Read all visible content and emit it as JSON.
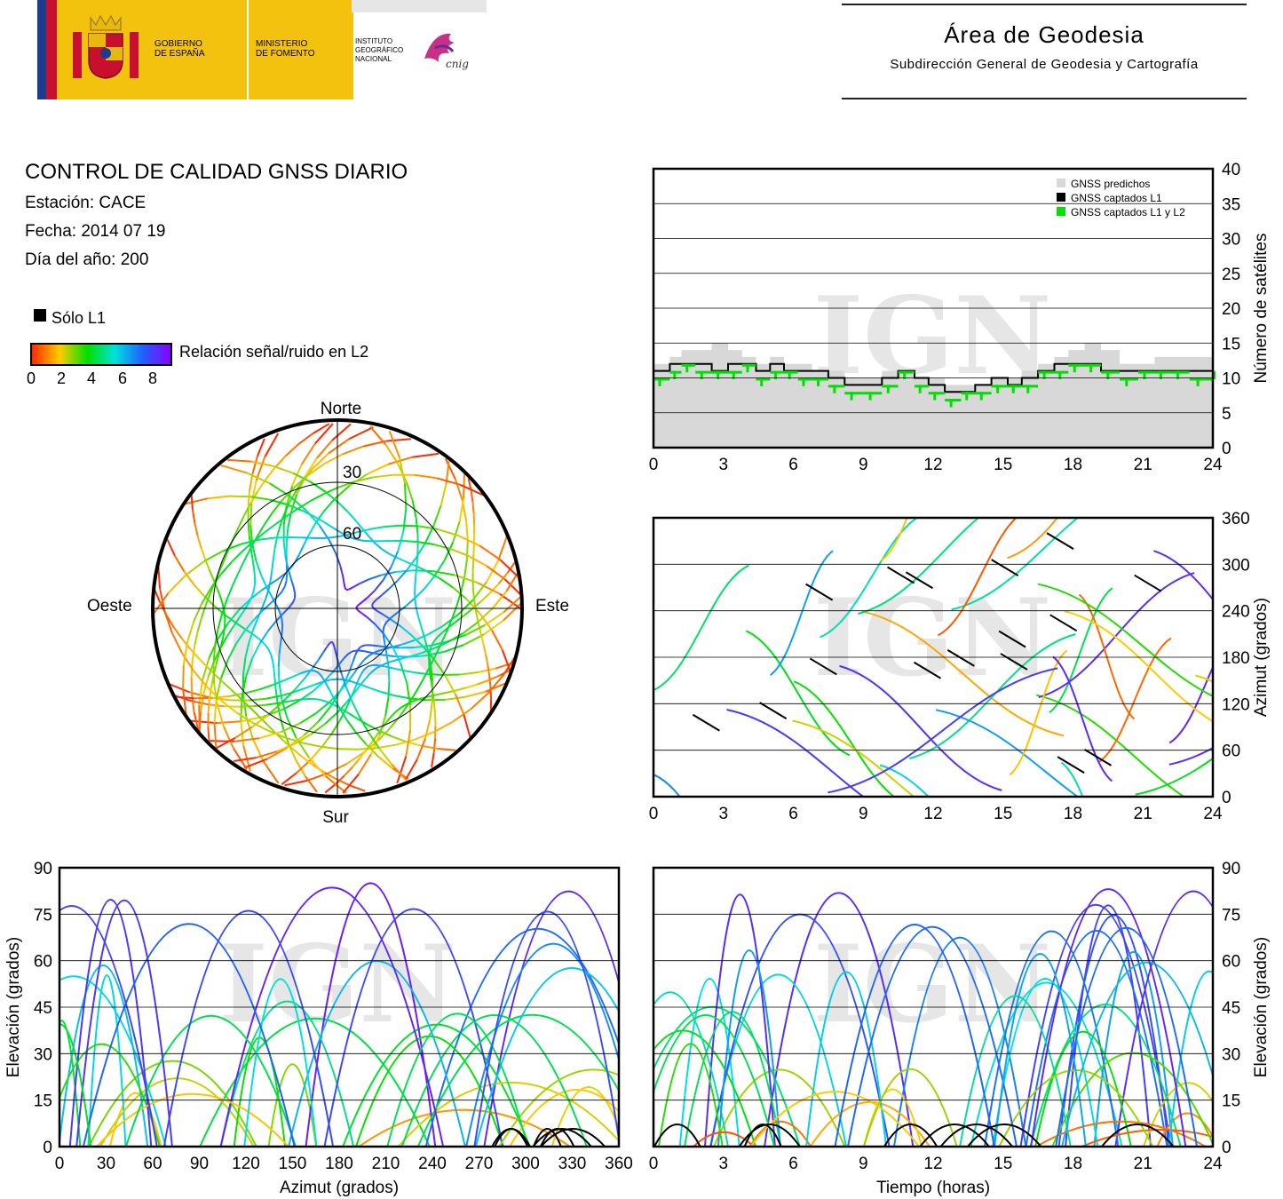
{
  "header": {
    "gov_line1": "GOBIERNO",
    "gov_line2": "DE ESPAÑA",
    "min_line1": "MINISTERIO",
    "min_line2": "DE FOMENTO",
    "inst_line1": "INSTITUTO",
    "inst_line2": "GEOGRÁFICO",
    "inst_line3": "NACIONAL",
    "cnig": "cnig",
    "area_title": "Área de Geodesia",
    "area_subtitle": "Subdirección General de Geodesia y Cartografía",
    "colors": {
      "yellow": "#f2c20f",
      "red": "#c8102e",
      "blue": "#1f3a8f",
      "magenta": "#c2187a"
    }
  },
  "info": {
    "title": "CONTROL DE CALIDAD GNSS DIARIO",
    "station": "Estación: CACE",
    "date": "Fecha: 2014 07 19",
    "doy": "Día del año: 200"
  },
  "legend": {
    "l1_only": "Sólo L1",
    "snr": "Relación señal/ruido en L2",
    "ticks": [
      "0",
      "2",
      "4",
      "6",
      "8"
    ],
    "scale_colors": [
      "#ff2a00",
      "#ffcc00",
      "#00e000",
      "#00e0e0",
      "#2060ff",
      "#8a00ff"
    ]
  },
  "watermark": "IGN",
  "chart_data": [
    {
      "type": "polar-skyplot",
      "labels": {
        "north": "Norte",
        "south": "Sur",
        "east": "Este",
        "west": "Oeste"
      },
      "ring_labels": [
        "30",
        "60"
      ],
      "rings_elevation": [
        30,
        60
      ]
    },
    {
      "type": "area",
      "ylabel": "Número de satélites",
      "xlim": [
        0,
        24
      ],
      "ylim": [
        0,
        40
      ],
      "xticks": [
        "0",
        "3",
        "6",
        "9",
        "12",
        "15",
        "18",
        "21",
        "24"
      ],
      "yticks": [
        "0",
        "5",
        "10",
        "15",
        "20",
        "25",
        "30",
        "35",
        "40"
      ],
      "legend": [
        "GNSS predichos",
        "GNSS captados L1",
        "GNSS captados L1 y L2"
      ],
      "legend_colors": [
        "#d8d8d8",
        "#000000",
        "#00e000"
      ],
      "x": [
        0,
        0.7,
        1.2,
        1.8,
        2.5,
        3.2,
        3.8,
        4.4,
        5.0,
        5.6,
        6.2,
        6.8,
        7.5,
        8.2,
        9.0,
        9.8,
        10.5,
        11.2,
        11.8,
        12.5,
        13.2,
        13.8,
        14.5,
        15.2,
        15.8,
        16.5,
        17.2,
        17.8,
        18.5,
        19.2,
        20.0,
        20.8,
        21.5,
        22.2,
        23.0,
        24.0
      ],
      "series": [
        {
          "name": "GNSS predichos",
          "values": [
            12,
            13,
            14,
            14,
            15,
            14,
            13,
            12,
            13,
            12,
            12,
            11,
            11,
            10,
            10,
            11,
            11,
            10,
            10,
            9,
            9,
            9,
            10,
            10,
            11,
            12,
            13,
            14,
            15,
            14,
            12,
            12,
            13,
            13,
            13,
            13
          ]
        },
        {
          "name": "GNSS captados L1",
          "values": [
            11,
            12,
            12,
            12,
            11,
            12,
            12,
            11,
            12,
            11,
            11,
            11,
            10,
            9,
            9,
            10,
            11,
            10,
            9,
            8,
            8,
            9,
            10,
            9,
            10,
            11,
            12,
            12,
            12,
            11,
            11,
            11,
            11,
            11,
            11,
            11
          ]
        },
        {
          "name": "GNSS captados L1 y L2",
          "values": [
            10,
            11,
            12,
            11,
            11,
            11,
            12,
            10,
            11,
            11,
            10,
            10,
            9,
            8,
            8,
            9,
            11,
            9,
            8,
            7,
            8,
            8,
            9,
            9,
            9,
            11,
            11,
            12,
            12,
            11,
            10,
            11,
            11,
            11,
            10,
            11
          ]
        }
      ]
    },
    {
      "type": "scatter",
      "ylabel": "Azimut (grados)",
      "xlim": [
        0,
        24
      ],
      "ylim": [
        0,
        360
      ],
      "xticks": [
        "0",
        "3",
        "6",
        "9",
        "12",
        "15",
        "18",
        "21",
        "24"
      ],
      "yticks": [
        "0",
        "60",
        "120",
        "180",
        "240",
        "300",
        "360"
      ]
    },
    {
      "type": "scatter",
      "xlabel": "Azimut (grados)",
      "ylabel": "Elevación (grados)",
      "xlim": [
        0,
        360
      ],
      "ylim": [
        0,
        90
      ],
      "xticks": [
        "0",
        "30",
        "60",
        "90",
        "120",
        "150",
        "180",
        "210",
        "240",
        "270",
        "300",
        "330",
        "360"
      ],
      "yticks": [
        "0",
        "15",
        "30",
        "45",
        "60",
        "75",
        "90"
      ]
    },
    {
      "type": "scatter",
      "xlabel": "Tiempo (horas)",
      "ylabel": "Elevación (grados)",
      "xlim": [
        0,
        24
      ],
      "ylim": [
        0,
        90
      ],
      "xticks": [
        "0",
        "3",
        "6",
        "9",
        "12",
        "15",
        "18",
        "21",
        "24"
      ],
      "yticks": [
        "0",
        "15",
        "30",
        "45",
        "60",
        "75",
        "90"
      ]
    }
  ]
}
